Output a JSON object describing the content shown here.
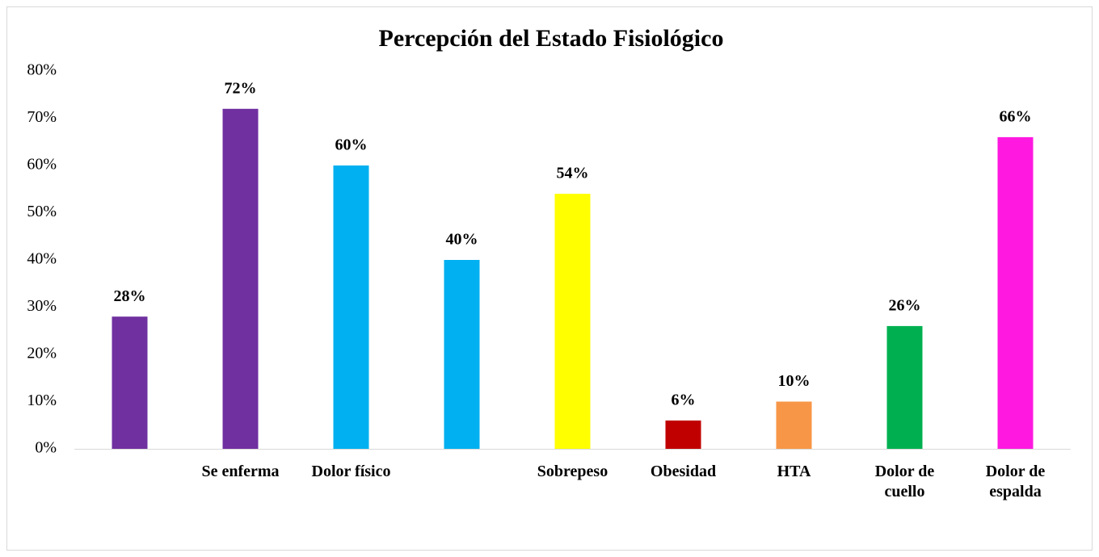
{
  "chart_data": {
    "type": "bar",
    "title": "Percepción del Estado Fisiológico",
    "categories": [
      null,
      "Se enferma",
      "Dolor físico",
      null,
      "Sobrepeso",
      "Obesidad",
      "HTA",
      "Dolor de cuello",
      "Dolor de espalda"
    ],
    "values": [
      28,
      72,
      60,
      40,
      54,
      6,
      10,
      26,
      66
    ],
    "value_labels": [
      "28%",
      "72%",
      "60%",
      "40%",
      "54%",
      "6%",
      "10%",
      "26%",
      "66%"
    ],
    "colors": [
      "#7030a0",
      "#7030a0",
      "#00b0f0",
      "#00b0f0",
      "#ffff00",
      "#c00000",
      "#f79646",
      "#00b050",
      "#ff19e0"
    ],
    "ylim": [
      0,
      80
    ],
    "yticks": [
      {
        "value": 0,
        "label": "0%"
      },
      {
        "value": 10,
        "label": "10%"
      },
      {
        "value": 20,
        "label": "20%"
      },
      {
        "value": 30,
        "label": "30%"
      },
      {
        "value": 40,
        "label": "40%"
      },
      {
        "value": 50,
        "label": "50%"
      },
      {
        "value": 60,
        "label": "60%"
      },
      {
        "value": 70,
        "label": "70%"
      },
      {
        "value": 80,
        "label": "80%"
      }
    ],
    "grid": false
  }
}
